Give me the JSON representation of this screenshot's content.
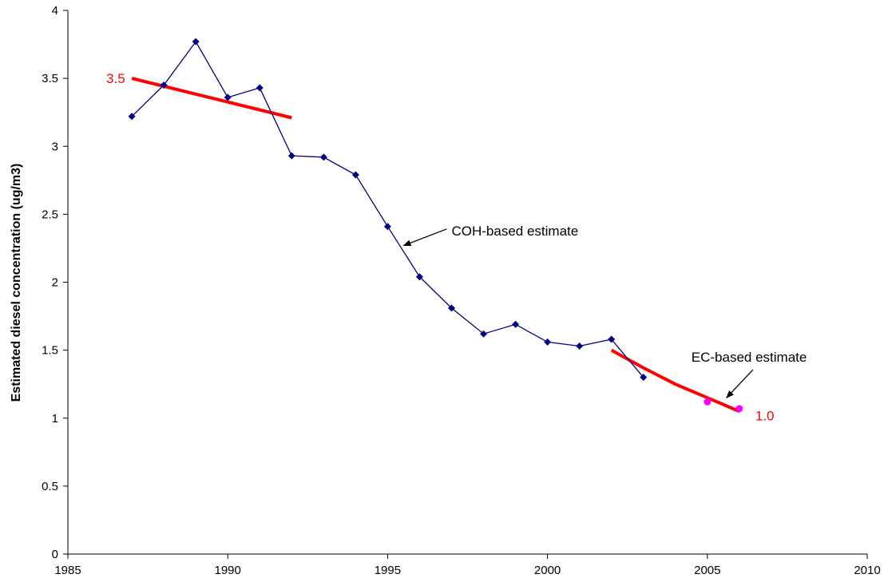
{
  "chart_data": {
    "type": "line",
    "title": "",
    "xlabel": "",
    "ylabel": "Estimated diesel concentration (ug/m3)",
    "xlim": [
      1985,
      2010
    ],
    "ylim": [
      0,
      4
    ],
    "x_ticks": [
      1985,
      1990,
      1995,
      2000,
      2005,
      2010
    ],
    "y_ticks": [
      0,
      0.5,
      1,
      1.5,
      2,
      2.5,
      3,
      3.5,
      4
    ],
    "y_tick_labels": [
      "0",
      "0.5",
      "1",
      "1.5",
      "2",
      "2.5",
      "3",
      "3.5",
      "4"
    ],
    "grid": false,
    "series": [
      {
        "color": "#000080",
        "marker": "diamond",
        "x": [
          1987,
          1988,
          1989,
          1990,
          1991,
          1992,
          1993,
          1994,
          1995,
          1996,
          1997,
          1998,
          1999,
          2000,
          2001,
          2002,
          2003
        ],
        "y": [
          3.22,
          3.45,
          3.77,
          3.36,
          3.43,
          2.93,
          2.92,
          2.79,
          2.41,
          2.04,
          1.81,
          1.62,
          1.69,
          1.56,
          1.53,
          1.58,
          1.3
        ]
      },
      {
        "color": "#ff00ff",
        "marker": "circle",
        "x": [
          2005,
          2006
        ],
        "y": [
          1.12,
          1.07
        ]
      }
    ],
    "trendlines": [
      {
        "color": "#ff0000",
        "x": [
          1987,
          1992
        ],
        "y": [
          3.5,
          3.21
        ]
      },
      {
        "color": "#ff0000",
        "x": [
          2002,
          2003,
          2004,
          2005,
          2006
        ],
        "y": [
          1.5,
          1.37,
          1.25,
          1.15,
          1.05
        ]
      }
    ],
    "annotations": [
      {
        "text": "COH-based estimate",
        "x": 1997.0,
        "y": 2.38,
        "arrow_to": [
          1995.5,
          2.27
        ]
      },
      {
        "text": "EC-based estimate",
        "x": 2004.5,
        "y": 1.45,
        "arrow_to": [
          2005.6,
          1.15
        ]
      },
      {
        "text": "3.5",
        "x": 1986.2,
        "y": 3.5,
        "color": "#ff0000"
      },
      {
        "text": "1.0",
        "x": 2006.5,
        "y": 1.02,
        "color": "#ff0000"
      }
    ]
  }
}
